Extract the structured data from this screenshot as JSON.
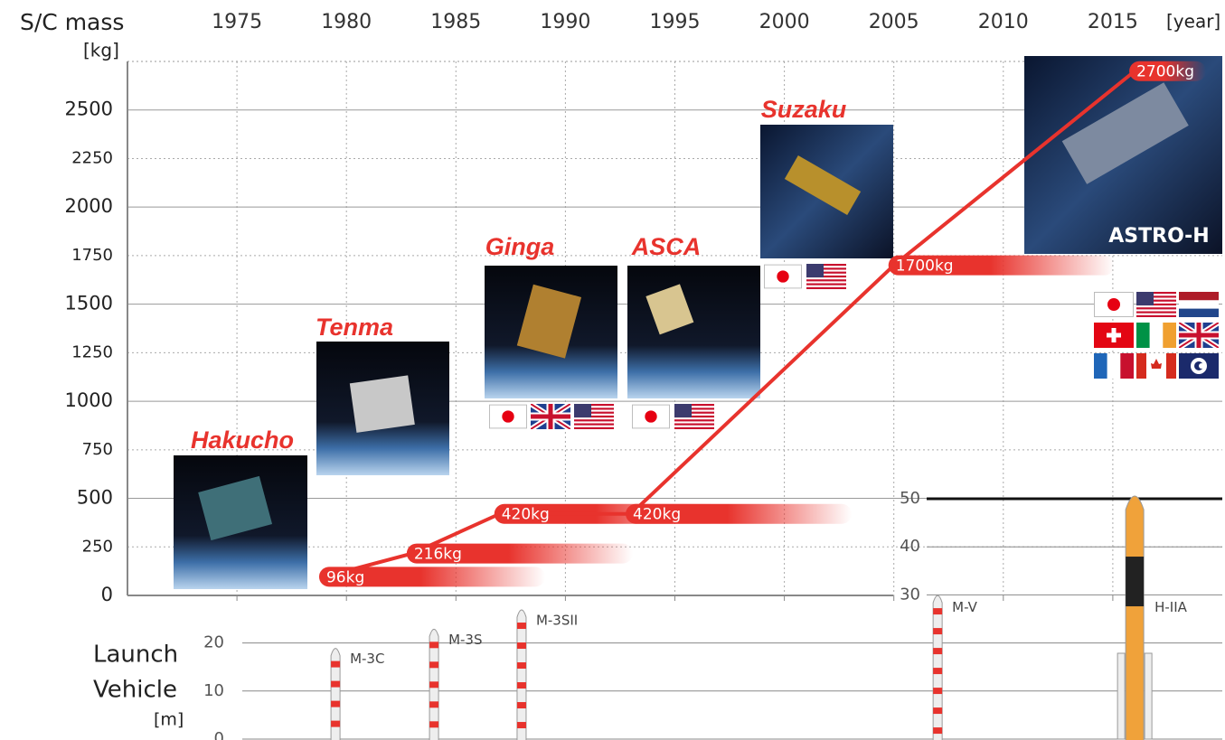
{
  "chart_data": [
    {
      "type": "line",
      "title": "S/C mass",
      "y_label": "[kg]",
      "x_label": "[year]",
      "xlim": [
        1970,
        2020
      ],
      "xticks": [
        1975,
        1980,
        1985,
        1990,
        1995,
        2000,
        2005,
        2010,
        2015
      ],
      "ylim": [
        0,
        2750
      ],
      "yticks": [
        0,
        250,
        500,
        750,
        1000,
        1250,
        1500,
        1750,
        2000,
        2250,
        2500
      ],
      "grid": true,
      "color": "#e8332d",
      "x": [
        1979,
        1983,
        1987,
        1993,
        2005,
        2016
      ],
      "values": [
        96,
        216,
        420,
        420,
        1700,
        2700
      ],
      "value_labels": [
        "96kg",
        "216kg",
        "420kg",
        "420kg",
        "1700kg",
        "2700kg"
      ],
      "labels": [
        "Hakucho",
        "Tenma",
        "Ginga",
        "ASCA",
        "Suzaku",
        "ASTRO-H"
      ]
    },
    {
      "type": "bar",
      "title": "Launch Vehicle",
      "y_label": "[m]",
      "categories": [
        "M-3C",
        "M-3S",
        "M-3SII",
        "M-V",
        "H-IIA"
      ],
      "x": [
        1979.5,
        1984,
        1988,
        2007,
        2016
      ],
      "values": [
        20,
        24,
        28,
        31,
        53
      ],
      "ylim": [
        0,
        50
      ],
      "yticks": [
        0,
        10,
        20,
        30,
        40,
        50
      ]
    }
  ]
}
